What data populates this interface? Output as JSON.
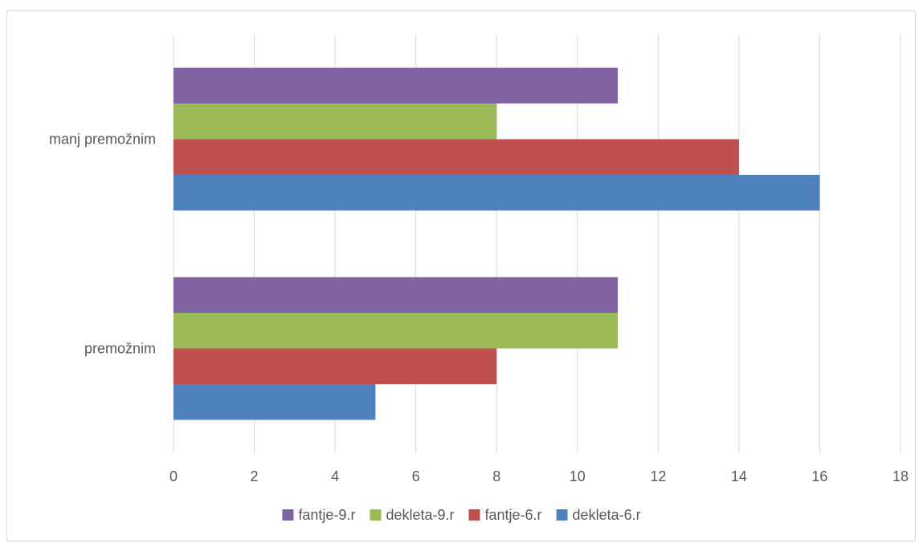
{
  "chart_data": {
    "type": "bar",
    "orientation": "horizontal",
    "title": "",
    "xlabel": "",
    "ylabel": "",
    "categories": [
      "premožnim",
      "manj premožnim"
    ],
    "series": [
      {
        "name": "dekleta-6.r",
        "color": "#4F81BD",
        "values": [
          5,
          16
        ]
      },
      {
        "name": "fantje-6.r",
        "color": "#C0504D",
        "values": [
          8,
          14
        ]
      },
      {
        "name": "dekleta-9.r",
        "color": "#9BBB59",
        "values": [
          11,
          8
        ]
      },
      {
        "name": "fantje-9.r",
        "color": "#8064A2",
        "values": [
          11,
          11
        ]
      }
    ],
    "xlim": [
      0,
      18
    ],
    "xticks": [
      0,
      2,
      4,
      6,
      8,
      10,
      12,
      14,
      16,
      18
    ],
    "xtick_labels": [
      "0",
      "2",
      "4",
      "6",
      "8",
      "10",
      "12",
      "14",
      "16",
      "18"
    ],
    "grid": true,
    "legend_position": "bottom",
    "legend_order": [
      "fantje-9.r",
      "dekleta-9.r",
      "fantje-6.r",
      "dekleta-6.r"
    ]
  }
}
